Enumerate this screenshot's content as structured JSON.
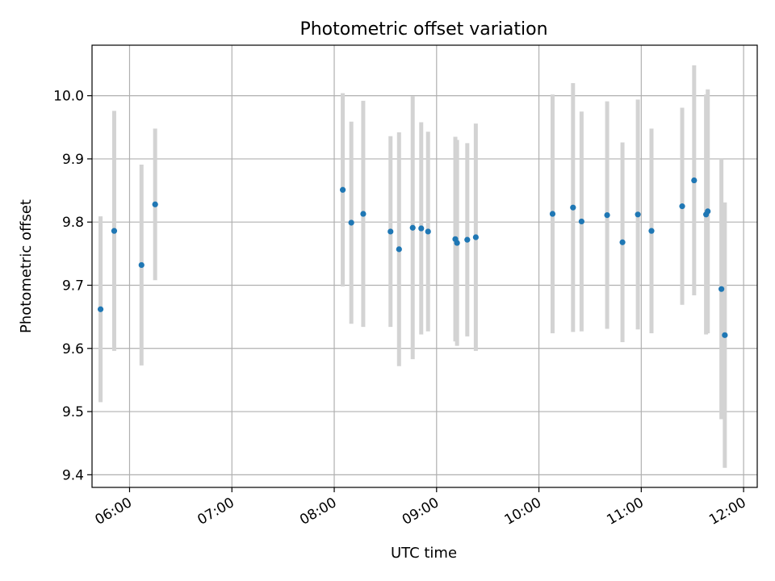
{
  "chart_data": {
    "type": "scatter",
    "title": "Photometric offset variation",
    "xlabel": "UTC time",
    "ylabel": "Photometric offset",
    "xlim": [
      "05:38",
      "12:08"
    ],
    "ylim": [
      9.38,
      10.08
    ],
    "x_ticks": [
      "06:00",
      "07:00",
      "08:00",
      "09:00",
      "10:00",
      "11:00",
      "12:00"
    ],
    "y_ticks": [
      "9.4",
      "9.5",
      "9.6",
      "9.7",
      "9.8",
      "9.9",
      "10.0"
    ],
    "grid": true,
    "colors": {
      "point": "#1f77b4",
      "errorbar": "#d3d3d3",
      "grid": "#b0b0b0"
    },
    "points": [
      {
        "time": "05:43",
        "value": 9.662,
        "err": 0.147
      },
      {
        "time": "05:51",
        "value": 9.786,
        "err": 0.19
      },
      {
        "time": "06:07",
        "value": 9.732,
        "err": 0.159
      },
      {
        "time": "06:15",
        "value": 9.828,
        "err": 0.12
      },
      {
        "time": "08:05",
        "value": 9.851,
        "err": 0.153
      },
      {
        "time": "08:10",
        "value": 9.799,
        "err": 0.16
      },
      {
        "time": "08:17",
        "value": 9.813,
        "err": 0.179
      },
      {
        "time": "08:33",
        "value": 9.785,
        "err": 0.151
      },
      {
        "time": "08:38",
        "value": 9.757,
        "err": 0.185
      },
      {
        "time": "08:46",
        "value": 9.791,
        "err": 0.208
      },
      {
        "time": "08:51",
        "value": 9.79,
        "err": 0.168
      },
      {
        "time": "08:55",
        "value": 9.785,
        "err": 0.158
      },
      {
        "time": "09:11",
        "value": 9.773,
        "err": 0.162
      },
      {
        "time": "09:12",
        "value": 9.767,
        "err": 0.163
      },
      {
        "time": "09:18",
        "value": 9.772,
        "err": 0.153
      },
      {
        "time": "09:23",
        "value": 9.776,
        "err": 0.18
      },
      {
        "time": "10:08",
        "value": 9.813,
        "err": 0.189
      },
      {
        "time": "10:20",
        "value": 9.823,
        "err": 0.197
      },
      {
        "time": "10:25",
        "value": 9.801,
        "err": 0.174
      },
      {
        "time": "10:40",
        "value": 9.811,
        "err": 0.18
      },
      {
        "time": "10:49",
        "value": 9.768,
        "err": 0.158
      },
      {
        "time": "10:58",
        "value": 9.812,
        "err": 0.182
      },
      {
        "time": "11:06",
        "value": 9.786,
        "err": 0.162
      },
      {
        "time": "11:24",
        "value": 9.825,
        "err": 0.156
      },
      {
        "time": "11:31",
        "value": 9.866,
        "err": 0.182
      },
      {
        "time": "11:38",
        "value": 9.812,
        "err": 0.19
      },
      {
        "time": "11:39",
        "value": 9.817,
        "err": 0.193
      },
      {
        "time": "11:47",
        "value": 9.694,
        "err": 0.206
      },
      {
        "time": "11:49",
        "value": 9.621,
        "err": 0.21
      }
    ]
  }
}
